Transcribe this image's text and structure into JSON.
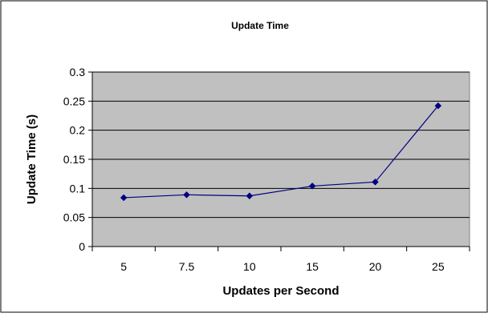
{
  "chart_data": {
    "type": "line",
    "title": "Update Time",
    "xlabel": "Updates per Second",
    "ylabel": "Update Time (s)",
    "categories": [
      "5",
      "7.5",
      "10",
      "15",
      "20",
      "25"
    ],
    "series": [
      {
        "values": [
          0.084,
          0.089,
          0.087,
          0.104,
          0.111,
          0.242
        ]
      }
    ],
    "ylim": [
      0,
      0.3
    ],
    "yticks": [
      "0",
      "0.05",
      "0.1",
      "0.15",
      "0.2",
      "0.25",
      "0.3"
    ],
    "grid": true,
    "legend": "none",
    "colors": {
      "plot_background": "#c0c0c0",
      "series_line": "#000080",
      "grid": "#000000"
    }
  }
}
